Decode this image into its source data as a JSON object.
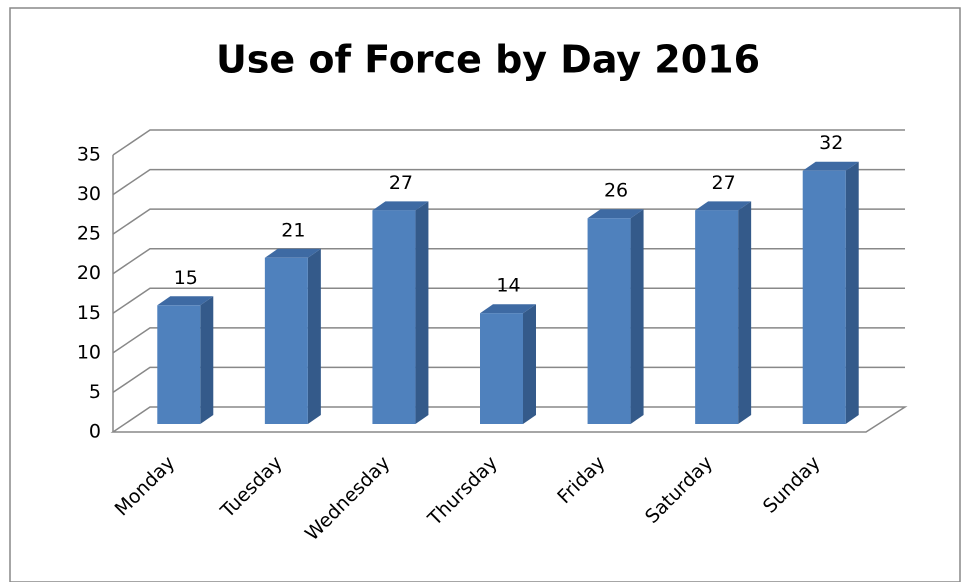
{
  "chart_data": {
    "type": "bar3d",
    "title": "Use of Force by Day 2016",
    "categories": [
      "Monday",
      "Tuesday",
      "Wednesday",
      "Thursday",
      "Friday",
      "Saturday",
      "Sunday"
    ],
    "values": [
      15,
      21,
      27,
      14,
      26,
      27,
      32
    ],
    "color": "#4f81bd",
    "ylim": [
      0,
      35
    ],
    "yticks": [
      0,
      5,
      10,
      15,
      20,
      25,
      30,
      35
    ],
    "grid": true
  }
}
